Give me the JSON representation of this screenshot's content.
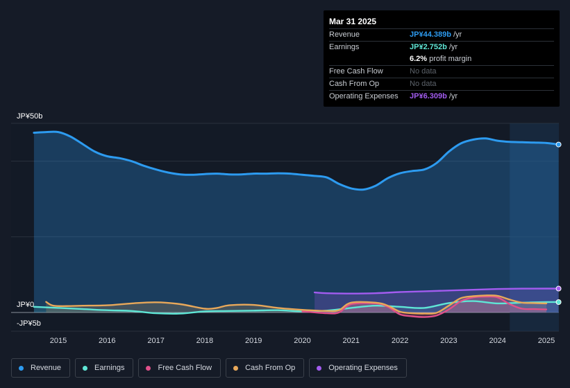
{
  "tooltip": {
    "date": "Mar 31 2025",
    "rows": [
      {
        "label": "Revenue",
        "value": "JP¥44.389b",
        "unit": "/yr",
        "color": "#2d9bf0"
      },
      {
        "label": "Earnings",
        "value": "JP¥2.752b",
        "unit": "/yr",
        "color": "#5fe6d6"
      },
      {
        "label": "",
        "value": "6.2%",
        "unit": "profit margin",
        "color": "#ffffff"
      },
      {
        "label": "Free Cash Flow",
        "value": "No data"
      },
      {
        "label": "Cash From Op",
        "value": "No data"
      },
      {
        "label": "Operating Expenses",
        "value": "JP¥6.309b",
        "unit": "/yr",
        "color": "#a35cf0"
      }
    ]
  },
  "legend": [
    {
      "label": "Revenue",
      "color": "#2d9bf0"
    },
    {
      "label": "Earnings",
      "color": "#5fe6d6"
    },
    {
      "label": "Free Cash Flow",
      "color": "#e0508a"
    },
    {
      "label": "Cash From Op",
      "color": "#e8a85a"
    },
    {
      "label": "Operating Expenses",
      "color": "#a35cf0"
    }
  ],
  "chart_data": {
    "type": "line",
    "title": "",
    "y_tick_labels": [
      "JP¥50b",
      "JP¥0",
      "-JP¥5b"
    ],
    "ylim": [
      -5,
      50
    ],
    "xlim": [
      2014.5,
      2025.25
    ],
    "x_tick_labels": [
      "2015",
      "2016",
      "2017",
      "2018",
      "2019",
      "2020",
      "2021",
      "2022",
      "2023",
      "2024",
      "2025"
    ],
    "x_tick_values": [
      2015,
      2016,
      2017,
      2018,
      2019,
      2020,
      2021,
      2022,
      2023,
      2024,
      2025
    ],
    "highlight_start": 2024.25,
    "series": [
      {
        "name": "Revenue",
        "color": "#2d9bf0",
        "fill": true,
        "points": [
          [
            2014.5,
            47.5
          ],
          [
            2014.75,
            47.7
          ],
          [
            2015.0,
            47.7
          ],
          [
            2015.25,
            46.5
          ],
          [
            2015.5,
            44.5
          ],
          [
            2015.75,
            42.5
          ],
          [
            2016.0,
            41.3
          ],
          [
            2016.25,
            40.8
          ],
          [
            2016.5,
            40.0
          ],
          [
            2016.75,
            38.8
          ],
          [
            2017.0,
            37.8
          ],
          [
            2017.25,
            37.0
          ],
          [
            2017.5,
            36.5
          ],
          [
            2017.75,
            36.4
          ],
          [
            2018.0,
            36.6
          ],
          [
            2018.25,
            36.7
          ],
          [
            2018.5,
            36.5
          ],
          [
            2018.75,
            36.5
          ],
          [
            2019.0,
            36.7
          ],
          [
            2019.25,
            36.7
          ],
          [
            2019.5,
            36.8
          ],
          [
            2019.75,
            36.7
          ],
          [
            2020.0,
            36.4
          ],
          [
            2020.25,
            36.1
          ],
          [
            2020.5,
            35.7
          ],
          [
            2020.75,
            34.0
          ],
          [
            2021.0,
            32.8
          ],
          [
            2021.25,
            32.5
          ],
          [
            2021.5,
            33.5
          ],
          [
            2021.75,
            35.5
          ],
          [
            2022.0,
            36.8
          ],
          [
            2022.25,
            37.4
          ],
          [
            2022.5,
            37.8
          ],
          [
            2022.75,
            39.5
          ],
          [
            2023.0,
            42.5
          ],
          [
            2023.25,
            44.7
          ],
          [
            2023.5,
            45.7
          ],
          [
            2023.75,
            46.0
          ],
          [
            2024.0,
            45.4
          ],
          [
            2024.25,
            45.1
          ],
          [
            2024.5,
            45.0
          ],
          [
            2024.75,
            44.9
          ],
          [
            2025.0,
            44.8
          ],
          [
            2025.25,
            44.4
          ]
        ]
      },
      {
        "name": "Earnings",
        "color": "#5fe6d6",
        "fill": true,
        "points": [
          [
            2014.5,
            1.5
          ],
          [
            2015.0,
            1.2
          ],
          [
            2015.5,
            0.9
          ],
          [
            2016.0,
            0.6
          ],
          [
            2016.5,
            0.4
          ],
          [
            2017.0,
            -0.2
          ],
          [
            2017.5,
            -0.3
          ],
          [
            2018.0,
            0.3
          ],
          [
            2018.5,
            0.4
          ],
          [
            2019.0,
            0.5
          ],
          [
            2019.5,
            0.6
          ],
          [
            2020.0,
            0.3
          ],
          [
            2020.5,
            0.5
          ],
          [
            2021.0,
            1.2
          ],
          [
            2021.5,
            1.8
          ],
          [
            2022.0,
            1.5
          ],
          [
            2022.5,
            1.2
          ],
          [
            2023.0,
            2.5
          ],
          [
            2023.5,
            3.0
          ],
          [
            2024.0,
            2.4
          ],
          [
            2024.5,
            2.6
          ],
          [
            2025.0,
            2.75
          ],
          [
            2025.25,
            2.75
          ]
        ]
      },
      {
        "name": "Free Cash Flow",
        "color": "#e0508a",
        "fill": true,
        "points": [
          [
            2020.0,
            0.3
          ],
          [
            2020.5,
            -0.2
          ],
          [
            2020.75,
            0.0
          ],
          [
            2021.0,
            2.2
          ],
          [
            2021.5,
            2.4
          ],
          [
            2021.75,
            1.5
          ],
          [
            2022.0,
            -0.5
          ],
          [
            2022.25,
            -1.0
          ],
          [
            2022.5,
            -1.2
          ],
          [
            2022.75,
            -0.8
          ],
          [
            2023.0,
            0.8
          ],
          [
            2023.25,
            3.0
          ],
          [
            2023.5,
            4.0
          ],
          [
            2023.75,
            4.2
          ],
          [
            2024.0,
            4.0
          ],
          [
            2024.25,
            2.2
          ],
          [
            2024.5,
            1.0
          ],
          [
            2024.75,
            0.9
          ],
          [
            2025.0,
            0.8
          ]
        ]
      },
      {
        "name": "Cash From Op",
        "color": "#e8a85a",
        "fill": true,
        "points": [
          [
            2014.75,
            2.8
          ],
          [
            2014.9,
            1.8
          ],
          [
            2015.25,
            1.7
          ],
          [
            2015.5,
            1.8
          ],
          [
            2016.0,
            1.9
          ],
          [
            2016.5,
            2.4
          ],
          [
            2017.0,
            2.7
          ],
          [
            2017.5,
            2.2
          ],
          [
            2018.0,
            1.0
          ],
          [
            2018.25,
            1.2
          ],
          [
            2018.5,
            1.9
          ],
          [
            2019.0,
            2.0
          ],
          [
            2019.5,
            1.2
          ],
          [
            2020.0,
            0.7
          ],
          [
            2020.5,
            0.4
          ],
          [
            2020.75,
            0.6
          ],
          [
            2021.0,
            2.6
          ],
          [
            2021.5,
            2.6
          ],
          [
            2021.75,
            1.8
          ],
          [
            2022.0,
            0.2
          ],
          [
            2022.25,
            -0.2
          ],
          [
            2022.5,
            -0.3
          ],
          [
            2022.75,
            -0.1
          ],
          [
            2023.0,
            1.8
          ],
          [
            2023.25,
            3.8
          ],
          [
            2023.5,
            4.3
          ],
          [
            2023.75,
            4.5
          ],
          [
            2024.0,
            4.4
          ],
          [
            2024.25,
            3.4
          ],
          [
            2024.5,
            2.6
          ],
          [
            2024.75,
            2.5
          ],
          [
            2025.0,
            2.4
          ]
        ]
      },
      {
        "name": "Operating Expenses",
        "color": "#a35cf0",
        "fill": true,
        "points": [
          [
            2020.25,
            5.3
          ],
          [
            2020.5,
            5.1
          ],
          [
            2021.0,
            5.0
          ],
          [
            2021.5,
            5.1
          ],
          [
            2022.0,
            5.4
          ],
          [
            2022.5,
            5.6
          ],
          [
            2023.0,
            5.8
          ],
          [
            2023.5,
            6.0
          ],
          [
            2024.0,
            6.2
          ],
          [
            2024.5,
            6.3
          ],
          [
            2025.0,
            6.31
          ],
          [
            2025.25,
            6.31
          ]
        ]
      }
    ]
  }
}
